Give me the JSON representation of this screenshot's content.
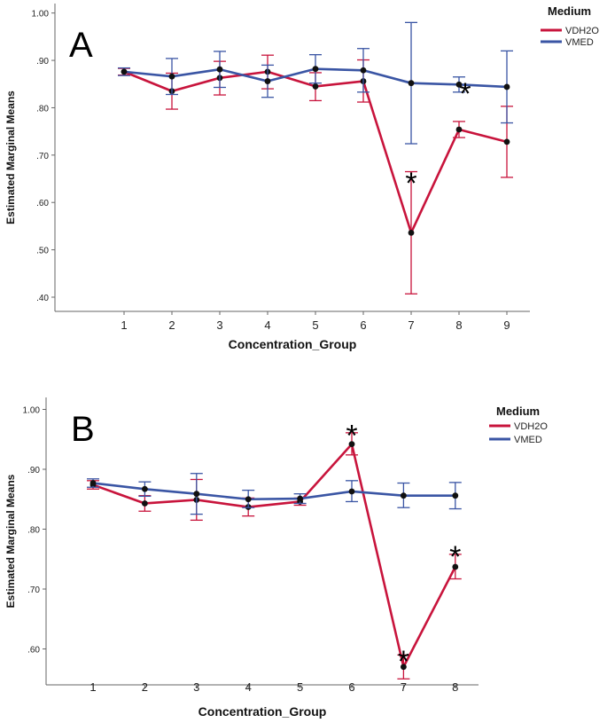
{
  "colors": {
    "VDH2O": "#c8143c",
    "VMED": "#3a55a4"
  },
  "chart_data": [
    {
      "type": "line",
      "panel_label": "A",
      "xlabel": "Concentration_Group",
      "ylabel": "Estimated Marginal Means",
      "legend_title": "Medium",
      "legend_position": "top-right",
      "categories": [
        "1",
        "2",
        "3",
        "4",
        "5",
        "6",
        "7",
        "8",
        "9"
      ],
      "ylim": [
        0.37,
        1.02
      ],
      "yticks": [
        0.4,
        0.5,
        0.6,
        0.7,
        0.8,
        0.9,
        1.0
      ],
      "ytick_labels": [
        ".40",
        ".50",
        ".60",
        ".70",
        ".80",
        ".90",
        "1.00"
      ],
      "series": [
        {
          "name": "VDH2O",
          "values": [
            0.876,
            0.835,
            0.863,
            0.876,
            0.845,
            0.856,
            0.536,
            0.754,
            0.728
          ],
          "err_low": [
            0.869,
            0.797,
            0.827,
            0.84,
            0.815,
            0.812,
            0.407,
            0.737,
            0.653
          ],
          "err_high": [
            0.883,
            0.873,
            0.898,
            0.911,
            0.874,
            0.901,
            0.665,
            0.771,
            0.803
          ]
        },
        {
          "name": "VMED",
          "values": [
            0.876,
            0.866,
            0.881,
            0.856,
            0.882,
            0.879,
            0.852,
            0.849,
            0.844
          ],
          "err_low": [
            0.868,
            0.828,
            0.843,
            0.822,
            0.852,
            0.833,
            0.724,
            0.833,
            0.768
          ],
          "err_high": [
            0.884,
            0.904,
            0.919,
            0.89,
            0.912,
            0.925,
            0.98,
            0.865,
            0.92
          ]
        }
      ],
      "annotations": [
        {
          "text": "*",
          "category": "7",
          "value": 0.66
        },
        {
          "text": "*",
          "category": "8",
          "value": 0.85
        }
      ]
    },
    {
      "type": "line",
      "panel_label": "B",
      "xlabel": "Concentration_Group",
      "ylabel": "Estimated Marginal Means",
      "legend_title": "Medium",
      "legend_position": "top-right",
      "categories": [
        "1",
        "2",
        "3",
        "4",
        "5",
        "6",
        "7",
        "8"
      ],
      "ylim": [
        0.54,
        1.02
      ],
      "yticks": [
        0.6,
        0.7,
        0.8,
        0.9,
        1.0
      ],
      "ytick_labels": [
        ".60",
        ".70",
        ".80",
        ".90",
        "1.00"
      ],
      "series": [
        {
          "name": "VDH2O",
          "values": [
            0.874,
            0.843,
            0.849,
            0.837,
            0.846,
            0.942,
            0.57,
            0.737
          ],
          "err_low": [
            0.867,
            0.83,
            0.815,
            0.822,
            0.84,
            0.924,
            0.55,
            0.717
          ],
          "err_high": [
            0.881,
            0.856,
            0.883,
            0.852,
            0.852,
            0.961,
            0.59,
            0.758
          ]
        },
        {
          "name": "VMED",
          "values": [
            0.877,
            0.867,
            0.859,
            0.85,
            0.851,
            0.863,
            0.856,
            0.856
          ],
          "err_low": [
            0.87,
            0.855,
            0.825,
            0.836,
            0.843,
            0.846,
            0.836,
            0.834
          ],
          "err_high": [
            0.884,
            0.879,
            0.893,
            0.865,
            0.859,
            0.881,
            0.877,
            0.878
          ]
        }
      ],
      "annotations": [
        {
          "text": "*",
          "category": "6",
          "value": 0.972
        },
        {
          "text": "*",
          "category": "7",
          "value": 0.595
        },
        {
          "text": "*",
          "category": "8",
          "value": 0.77
        }
      ]
    }
  ]
}
